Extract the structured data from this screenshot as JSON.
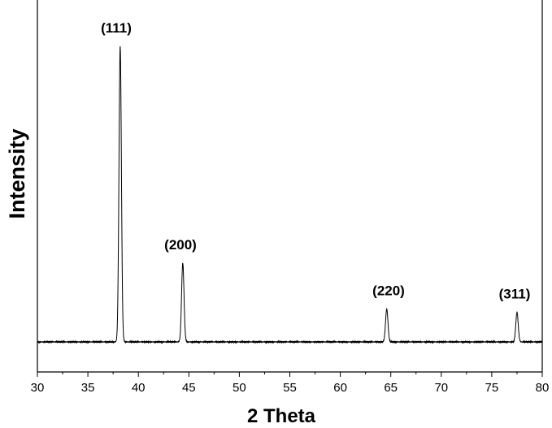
{
  "chart_data": {
    "type": "line",
    "title": "",
    "xlabel": "2 Theta",
    "ylabel": "Intensity",
    "xlim": [
      30,
      80
    ],
    "x_ticks": [
      30,
      35,
      40,
      45,
      50,
      55,
      60,
      65,
      70,
      75,
      80
    ],
    "x_tick_labels": [
      "30",
      "35",
      "40",
      "45",
      "50",
      "55",
      "60",
      "65",
      "70",
      "75",
      "80"
    ],
    "ylim": [
      0,
      110
    ],
    "y_ticks_shown": false,
    "baseline": 10,
    "grid": false,
    "legend": "none",
    "line_color": "#000000",
    "peaks": [
      {
        "label": "(111)",
        "position": 38.2,
        "height": 100,
        "width": 0.12
      },
      {
        "label": "(200)",
        "position": 44.4,
        "height": 34,
        "width": 0.12
      },
      {
        "label": "(220)",
        "position": 64.6,
        "height": 20,
        "width": 0.12
      },
      {
        "label": "(311)",
        "position": 77.5,
        "height": 19,
        "width": 0.12
      }
    ]
  }
}
